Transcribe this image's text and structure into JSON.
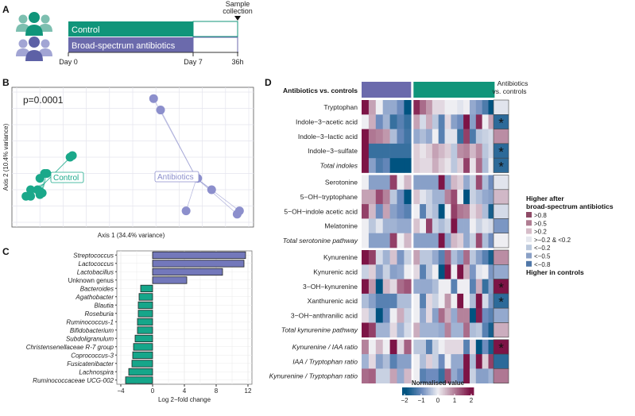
{
  "panels": {
    "A": {
      "letter": "A",
      "sample_collection": [
        "Sample",
        "collection"
      ],
      "groups": [
        {
          "label": "Control",
          "color": "#10957a"
        },
        {
          "label": "Broad-spectrum antibiotics",
          "color": "#6b6aac"
        }
      ],
      "timeline_labels": [
        "Day 0",
        "Day 7",
        "36h"
      ]
    },
    "B": {
      "letter": "B",
      "pvalue": "p=0.0001",
      "xlabel": "Axis 1 (34.4% variance)",
      "ylabel": "Axis 2  (10.4% variance)",
      "groups": [
        {
          "label": "Control",
          "color": "#1aa88a"
        },
        {
          "label": "Antibiotics",
          "color": "#8c8fcc"
        }
      ]
    },
    "C": {
      "letter": "C"
    },
    "D": {
      "letter": "D",
      "header_label": "Antibiotics vs. controls",
      "side_header": [
        "Antibiotics",
        "vs. controls"
      ],
      "legend_title_top": "Higher after",
      "legend_title_top2": "broad-spectrum antibiotics",
      "legend_items": [
        {
          "label": ">0.8",
          "color": "#8e4a66"
        },
        {
          "label": ">0.5",
          "color": "#b07d92"
        },
        {
          "label": ">0.2",
          "color": "#d6bcc8"
        },
        {
          "label": ">−0.2 & <0.2",
          "color": "#e6e8ef"
        },
        {
          "label": "<−0.2",
          "color": "#bcc9dd"
        },
        {
          "label": "<−0.5",
          "color": "#8aa0c6"
        },
        {
          "label": "<−0.8",
          "color": "#4f77a8"
        }
      ],
      "legend_title_bottom": "Higher in controls",
      "colorbar_title": "Normalised value",
      "colorbar_ticks": [
        "−2",
        "−1",
        "0",
        "1",
        "2"
      ]
    }
  },
  "chart_data": [
    {
      "type": "scatter",
      "panel": "B",
      "title": "",
      "xlabel": "Axis 1 (34.4% variance)",
      "ylabel": "Axis 2  (10.4% variance)",
      "annotation": "p=0.0001",
      "xlim": [
        0,
        10
      ],
      "ylim": [
        0,
        8
      ],
      "grid": true,
      "series": [
        {
          "name": "Control",
          "points": [
            [
              2.3,
              4.0
            ],
            [
              2.4,
              4.1
            ],
            [
              1.2,
              3.0
            ],
            [
              1.3,
              3.0
            ],
            [
              1.0,
              2.7
            ],
            [
              0.6,
              2.0
            ],
            [
              0.9,
              2.0
            ],
            [
              0.4,
              1.6
            ],
            [
              0.6,
              1.6
            ],
            [
              1.0,
              1.7
            ],
            [
              1.0,
              1.9
            ],
            [
              1.1,
              1.8
            ]
          ],
          "centroid": [
            1.2,
            2.4
          ]
        },
        {
          "name": "Antibiotics",
          "points": [
            [
              5.9,
              7.6
            ],
            [
              6.2,
              6.9
            ],
            [
              7.8,
              2.7
            ],
            [
              8.4,
              2.0
            ],
            [
              7.3,
              0.7
            ],
            [
              9.6,
              0.7
            ],
            [
              9.5,
              0.5
            ]
          ],
          "centroid": [
            7.75,
            2.7
          ]
        }
      ]
    },
    {
      "type": "bar",
      "panel": "C",
      "orientation": "horizontal",
      "xlabel": "Log 2−fold change",
      "ylabel": "",
      "xlim": [
        -4.5,
        12.5
      ],
      "xticks": [
        -4,
        0,
        4,
        8,
        12
      ],
      "grid": true,
      "categories": [
        "Streptococcus",
        "Lactococcus",
        "Lactobacillus",
        "Unknown genus",
        "Bacteroides",
        "Agathobacter",
        "Blautia",
        "Roseburia",
        "Ruminococcus-1",
        "Bifidobacterium",
        "Subdoligranulum",
        "Christensenellaceae R-7 group",
        "Coprococcus-3",
        "Fusicatenibacter",
        "Lachnospira",
        "Ruminococcaceae UCG-002"
      ],
      "italic": [
        true,
        true,
        true,
        false,
        true,
        true,
        true,
        true,
        true,
        true,
        true,
        true,
        true,
        true,
        true,
        true
      ],
      "values": [
        11.7,
        11.5,
        8.8,
        4.3,
        -1.5,
        -1.7,
        -1.8,
        -1.8,
        -1.9,
        -1.9,
        -2.2,
        -2.4,
        -2.5,
        -2.6,
        -3.0,
        -3.4
      ]
    },
    {
      "type": "heatmap",
      "panel": "D",
      "groups": [
        {
          "name": "Antibiotics",
          "n": 7,
          "color": "#6b6aac"
        },
        {
          "name": "Controls",
          "n": 13,
          "color": "#10957a"
        }
      ],
      "value_range": [
        -2,
        2
      ],
      "blocks": [
        {
          "rows": [
            {
              "label": "Tryptophan",
              "italic": false,
              "values": [
                2,
                0.7,
                0,
                -0.7,
                -0.7,
                -1,
                -2,
                1.8,
                1.2,
                0.8,
                0.2,
                0.2,
                0,
                0,
                -0.1,
                0,
                -0.7,
                -0.9,
                -1.3,
                -2
              ],
              "summary": -0.1,
              "star": false
            },
            {
              "label": "Indole−3−acetic acid",
              "italic": false,
              "values": [
                0,
                0.6,
                -1,
                -0.6,
                -1.5,
                -1.2,
                -1.5,
                0.7,
                -0.2,
                0.6,
                -0.4,
                -1.2,
                0.2,
                -0.8,
                -1,
                2,
                -0.8,
                1.8,
                0,
                0.7
              ],
              "summary": -1.6,
              "star": true
            },
            {
              "label": "Indole−3−lactic acid",
              "italic": false,
              "values": [
                2,
                1.1,
                1,
                0.8,
                -0.5,
                -1.1,
                -1.4,
                -0.7,
                -0.5,
                -0.7,
                0,
                -1.2,
                -0.1,
                -0.1,
                -1.5,
                1.6,
                -1.3,
                -0.4,
                -0.3,
                -0.2
              ],
              "summary": 0.9,
              "star": false
            },
            {
              "label": "Indole−3−sulfate",
              "italic": false,
              "values": [
                2,
                -1.5,
                -1.5,
                -1.5,
                -1.5,
                -1.5,
                -1.5,
                0.3,
                0.1,
                0.3,
                0.7,
                0.5,
                0.3,
                -0.4,
                0.9,
                1,
                0.5,
                0.9,
                -0.4,
                -0.2
              ],
              "summary": -1.6,
              "star": true
            },
            {
              "label": "Total indoles",
              "italic": true,
              "values": [
                2,
                -0.8,
                -1.3,
                -1.1,
                -2,
                -2,
                -2,
                0.3,
                0.2,
                0.2,
                0.6,
                0.3,
                0.1,
                -0.4,
                0.3,
                1.6,
                0.1,
                1.2,
                -0.5,
                0
              ],
              "summary": -1.6,
              "star": true
            }
          ]
        },
        {
          "rows": [
            {
              "label": "Serotonine",
              "italic": false,
              "values": [
                0,
                -0.8,
                -0.8,
                -0.8,
                1.6,
                0,
                0.5,
                -0.8,
                -0.8,
                -0.8,
                -0.8,
                2,
                -0.8,
                0.5,
                0.3,
                -0.7,
                -0.3,
                1.5,
                -0.5,
                -1
              ],
              "summary": -0.1,
              "star": false
            },
            {
              "label": "5−OH−tryptophane",
              "italic": false,
              "values": [
                0.7,
                0.7,
                1.5,
                1,
                -0.4,
                -1,
                -2,
                0.4,
                -0.1,
                -0.3,
                -0.6,
                -0.6,
                1,
                1.5,
                0,
                -2,
                -0.3,
                -0.5,
                -0.7,
                -0.8
              ],
              "summary": 0.5,
              "star": false
            },
            {
              "label": "5−OH−indole acetic acid",
              "italic": false,
              "values": [
                1.6,
                0.5,
                -1,
                0.7,
                -0.8,
                -1,
                -1.2,
                0,
                -1.2,
                -0.3,
                -0.5,
                -2,
                0,
                1.6,
                1.1,
                1,
                0.2,
                0.5,
                -0.5,
                -1.8
              ],
              "summary": -0.2,
              "star": false
            },
            {
              "label": "Melatonine",
              "italic": false,
              "values": [
                0,
                -0.4,
                -0.1,
                -0.6,
                -0.6,
                -0.7,
                -0.7,
                0.4,
                0,
                1.6,
                -0.3,
                -0.5,
                -0.3,
                2,
                -0.7,
                -0.7,
                0,
                -0.3,
                -0.1,
                -0.2
              ],
              "summary": -0.9,
              "star": false
            },
            {
              "label": "Total serotonine pathway",
              "italic": true,
              "values": [
                0,
                -0.8,
                -0.8,
                -0.8,
                1.6,
                0,
                0.5,
                -0.8,
                -0.8,
                -0.8,
                -0.8,
                2,
                -0.8,
                0.5,
                0.3,
                -0.7,
                -0.3,
                1.5,
                -0.5,
                -1
              ],
              "summary": 0,
              "star": false
            }
          ]
        },
        {
          "rows": [
            {
              "label": "Kynurenine",
              "italic": false,
              "values": [
                2,
                1.6,
                -0.2,
                -0.6,
                0.4,
                -0.9,
                -0.3,
                0.7,
                -0.4,
                -0.4,
                -0.7,
                -1.2,
                1.3,
                -0.5,
                -0.8,
                1.2,
                -0.4,
                -0.8,
                -1.2,
                -1.8
              ],
              "summary": 0.9,
              "star": false
            },
            {
              "label": "Kynurenic acid",
              "italic": false,
              "values": [
                -0.3,
                0.3,
                -0.8,
                -0.3,
                -0.8,
                -0.7,
                0,
                0.2,
                -1.2,
                -0.4,
                0,
                -2,
                2,
                0,
                2,
                0.6,
                -0.9,
                -0.1,
                0,
                -0.9
              ],
              "summary": -0.7,
              "star": false
            },
            {
              "label": "3−OH−kynurenine",
              "italic": false,
              "values": [
                2,
                0.8,
                -2,
                0.5,
                0.2,
                1.2,
                1.4,
                -0.7,
                -0.7,
                -0.7,
                -0.5,
                0,
                0,
                -1.2,
                0,
                0,
                -1.2,
                0.6,
                -1.5,
                -0.8
              ],
              "summary": 2,
              "star": true
            },
            {
              "label": "Xanthurenic acid",
              "italic": false,
              "values": [
                -0.5,
                -0.8,
                -1.2,
                -1.2,
                -1.2,
                -0.5,
                -0.5,
                0,
                -1.2,
                0.2,
                -0.3,
                0,
                0.8,
                0,
                2,
                0,
                -0.5,
                2,
                -0.2,
                -0.9
              ],
              "summary": -1.6,
              "star": true
            },
            {
              "label": "3−OH−anthranilic acid",
              "italic": false,
              "values": [
                0.2,
                -0.4,
                -2,
                -1,
                0,
                0.6,
                -0.3,
                0,
                -0.7,
                0.2,
                -0.8,
                1.2,
                0.6,
                -0.7,
                1,
                1,
                -2,
                1.9,
                -1,
                -1.2
              ],
              "summary": -0.7,
              "star": false
            },
            {
              "label": "Total kynurenine pathway",
              "italic": true,
              "values": [
                2,
                1.6,
                -0.6,
                -0.6,
                0.2,
                -0.6,
                -0.2,
                0.6,
                -0.6,
                -0.6,
                -0.6,
                -0.7,
                1,
                -0.6,
                -0.6,
                1.2,
                -0.5,
                -0.4,
                -1.2,
                -1.8
              ],
              "summary": 0.6,
              "star": false
            }
          ]
        },
        {
          "rows": [
            {
              "label": "Kynurenine / IAA ratio",
              "italic": true,
              "values": [
                1,
                0,
                0.5,
                0,
                2,
                0.2,
                1.3,
                -0.4,
                -0.4,
                -1.2,
                -0.3,
                0,
                0.2,
                0.2,
                0.2,
                -1.2,
                0.2,
                -2,
                -1,
                -1.8
              ],
              "summary": 2,
              "star": true
            },
            {
              "label": "IAA / Tryptophan ratio",
              "italic": true,
              "values": [
                -0.6,
                0.2,
                -0.8,
                -0.5,
                -1.2,
                -0.8,
                -0.8,
                0,
                -0.5,
                0.3,
                -0.3,
                -1,
                0,
                -0.7,
                -0.7,
                2,
                -0.5,
                2,
                0.3,
                1.6
              ],
              "summary": -1.6,
              "star": false
            },
            {
              "label": "Kynurenine / Tryptophan ratio",
              "italic": true,
              "values": [
                1.2,
                1.3,
                -0.3,
                -0.3,
                0.7,
                -0.7,
                0.5,
                0,
                -1.2,
                -1,
                -1,
                -1.5,
                1.4,
                -0.7,
                -1,
                2,
                -0.3,
                -0.8,
                -0.8,
                -0.6
              ],
              "summary": 1.1,
              "star": false
            }
          ]
        }
      ]
    }
  ]
}
